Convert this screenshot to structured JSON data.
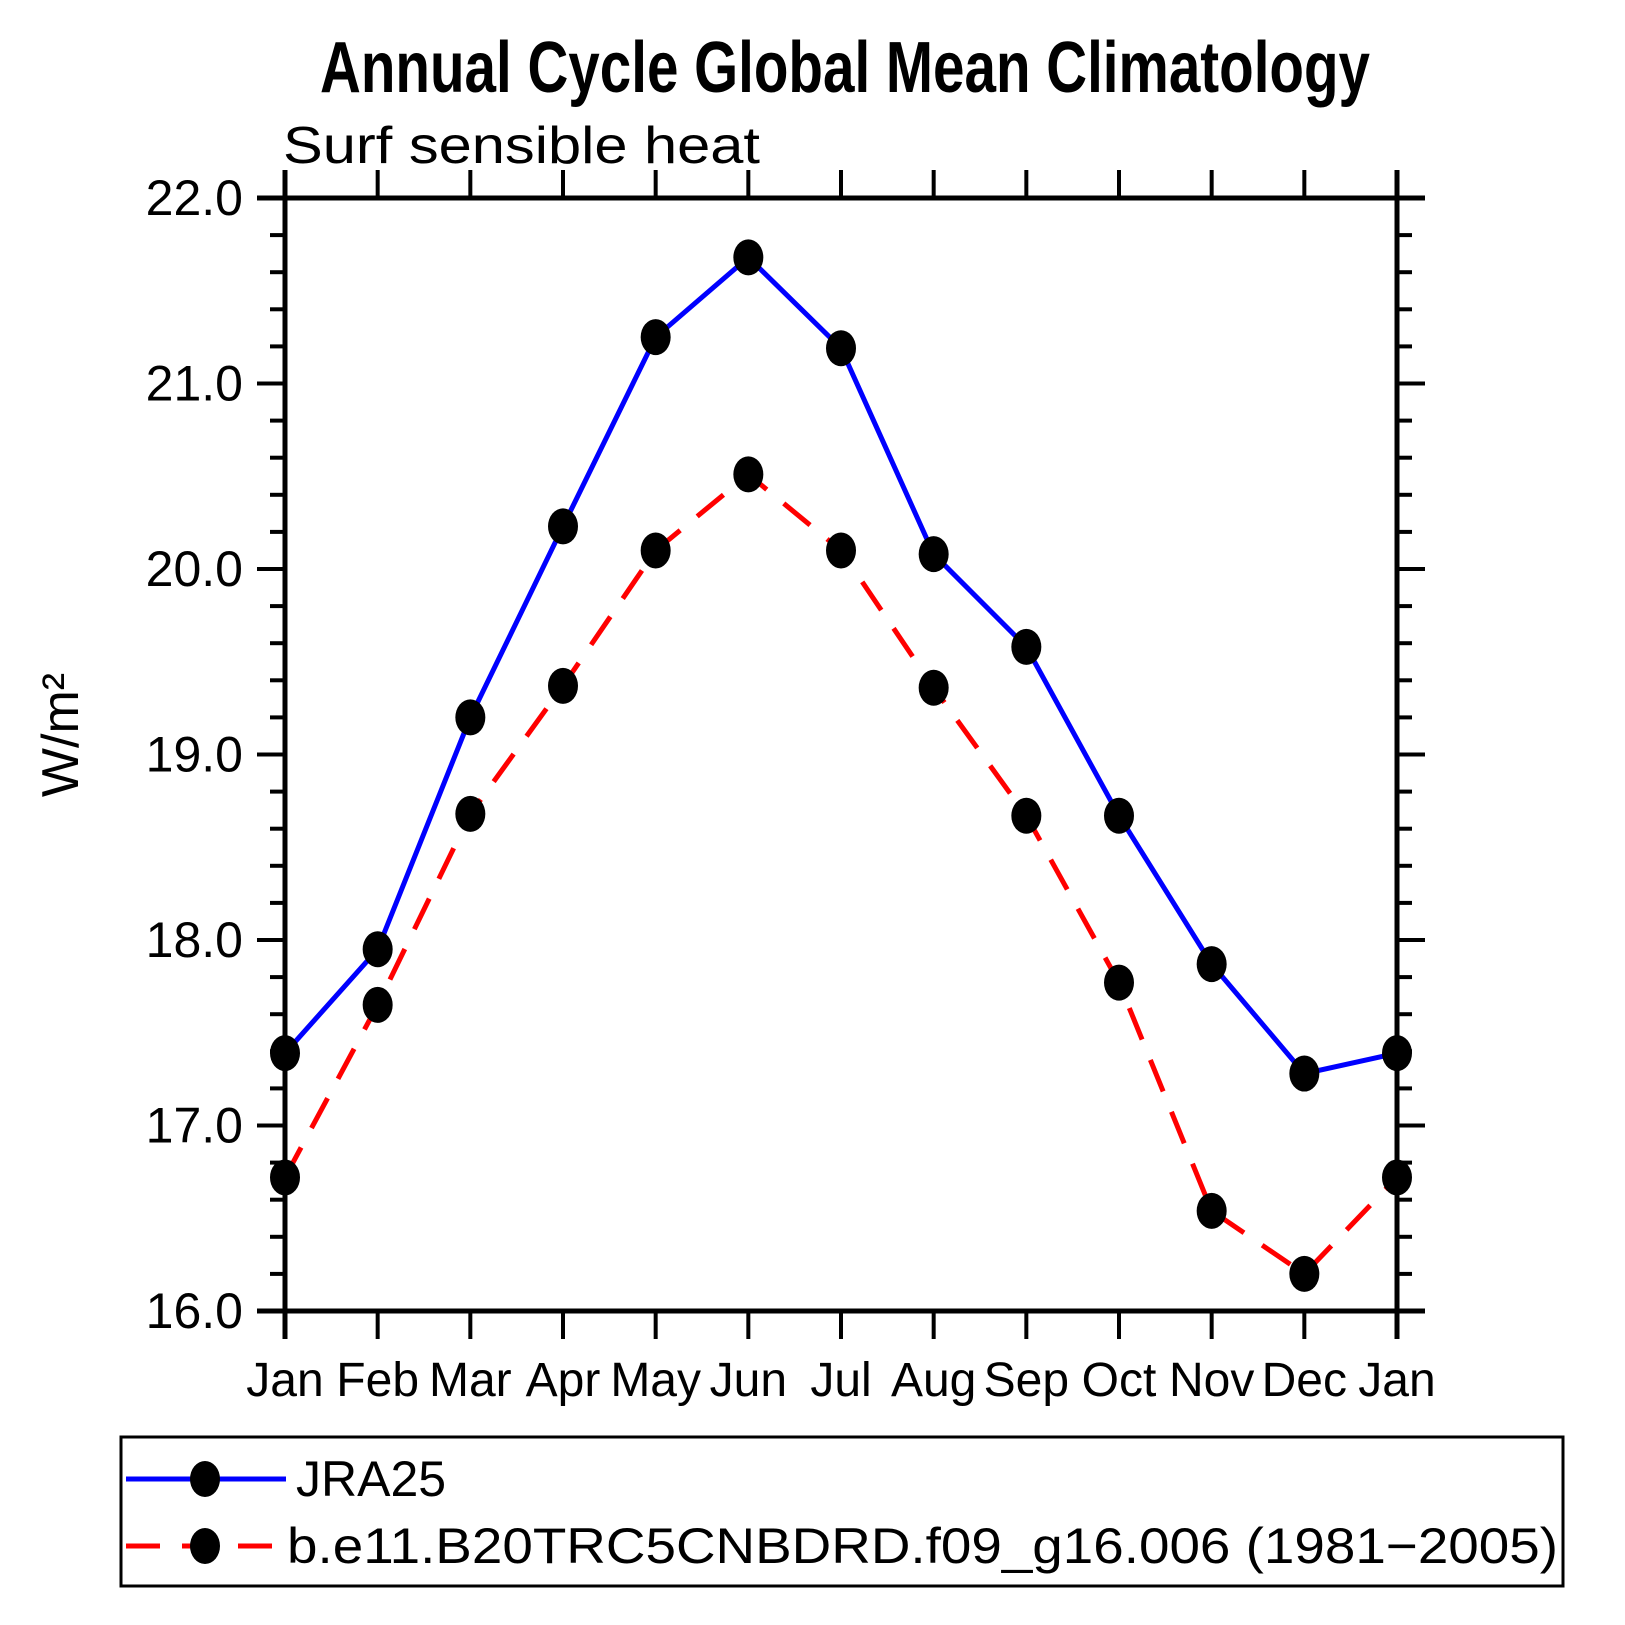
{
  "title": "Annual Cycle Global Mean Climatology",
  "subtitle": "Surf sensible heat",
  "ylabel": "W/m²",
  "chart_data": {
    "type": "line",
    "categories": [
      "Jan",
      "Feb",
      "Mar",
      "Apr",
      "May",
      "Jun",
      "Jul",
      "Aug",
      "Sep",
      "Oct",
      "Nov",
      "Dec",
      "Jan"
    ],
    "xlabel": "",
    "ylabel": "W/m²",
    "ylim": [
      16.0,
      22.0
    ],
    "ytick_step": 1.0,
    "ytick_minor_step": 0.2,
    "grid": false,
    "legend_position": "bottom-box",
    "axis_color": "#000000",
    "marker_color": "#000000",
    "series": [
      {
        "name": "JRA25",
        "color": "#0000ff",
        "style": "solid",
        "marker": "filled-circle",
        "values": [
          17.39,
          17.95,
          19.2,
          20.23,
          21.25,
          21.68,
          21.19,
          20.08,
          19.58,
          18.67,
          17.87,
          17.28,
          17.39
        ]
      },
      {
        "name": "b.e11.B20TRC5CNBDRD.f09_g16.006 (1981−2005)",
        "color": "#ff0000",
        "style": "dashed",
        "marker": "filled-circle",
        "values": [
          16.72,
          17.65,
          18.68,
          19.37,
          20.1,
          20.51,
          20.1,
          19.36,
          18.67,
          17.77,
          16.54,
          16.2,
          16.72
        ]
      }
    ]
  }
}
